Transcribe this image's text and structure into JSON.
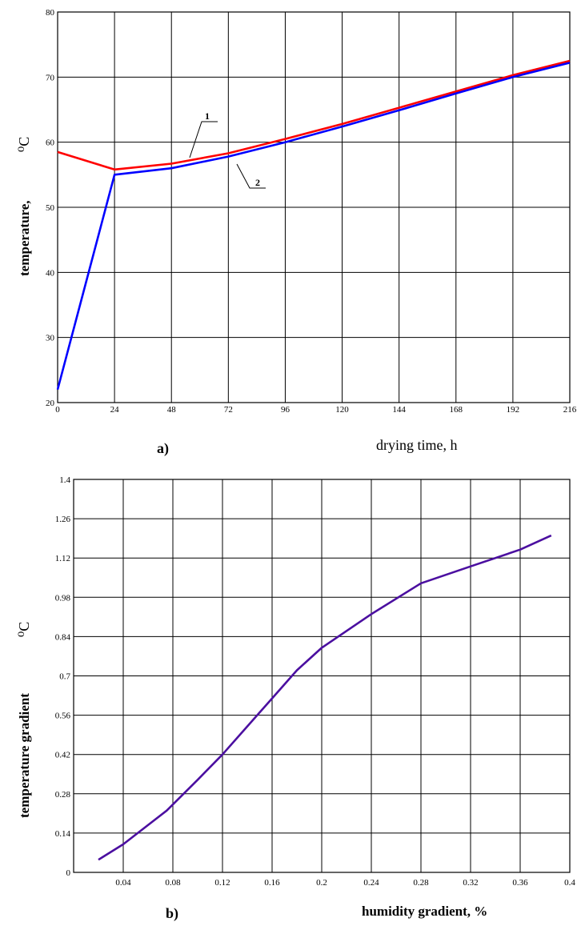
{
  "chart_data": [
    {
      "type": "line",
      "panel_label": "a)",
      "xlabel": "drying time, h",
      "ylabel": "temperature,",
      "ylabel_unit": "⁰C",
      "x_ticks": [
        "0",
        "24",
        "48",
        "72",
        "96",
        "120",
        "144",
        "168",
        "192",
        "216"
      ],
      "y_ticks": [
        "20",
        "30",
        "40",
        "50",
        "60",
        "70",
        "80"
      ],
      "xlim": [
        0,
        216
      ],
      "ylim": [
        20,
        80
      ],
      "grid": true,
      "series": [
        {
          "name": "1",
          "color": "#ff0000",
          "x": [
            0,
            24,
            48,
            72,
            96,
            120,
            144,
            168,
            192,
            216
          ],
          "y": [
            58.5,
            55.8,
            56.7,
            58.3,
            60.5,
            62.8,
            65.3,
            67.8,
            70.3,
            72.5
          ]
        },
        {
          "name": "2",
          "color": "#0000ff",
          "x": [
            0,
            24,
            48,
            72,
            96,
            120,
            144,
            168,
            192,
            216
          ],
          "y": [
            22,
            55,
            56,
            57.8,
            60,
            62.4,
            64.9,
            67.5,
            70,
            72.2
          ]
        }
      ]
    },
    {
      "type": "line",
      "panel_label": "b)",
      "xlabel": "humidity gradient, %",
      "ylabel": "temperature gradient",
      "ylabel_unit": "⁰C",
      "x_ticks": [
        "0.04",
        "0.08",
        "0.12",
        "0.16",
        "0.2",
        "0.24",
        "0.28",
        "0.32",
        "0.36",
        "0.4"
      ],
      "y_ticks": [
        "0",
        "0.14",
        "0.28",
        "0.42",
        "0.56",
        "0.7",
        "0.84",
        "0.98",
        "1.12",
        "1.26",
        "1.4"
      ],
      "xlim": [
        0,
        0.4
      ],
      "ylim": [
        0,
        1.4
      ],
      "grid": true,
      "series": [
        {
          "color": "#4b0fa0",
          "x": [
            0.02,
            0.04,
            0.075,
            0.1,
            0.12,
            0.14,
            0.16,
            0.18,
            0.2,
            0.24,
            0.28,
            0.32,
            0.36,
            0.385
          ],
          "y": [
            0.045,
            0.1,
            0.22,
            0.33,
            0.42,
            0.52,
            0.62,
            0.72,
            0.8,
            0.92,
            1.03,
            1.09,
            1.15,
            1.2
          ]
        }
      ]
    }
  ]
}
